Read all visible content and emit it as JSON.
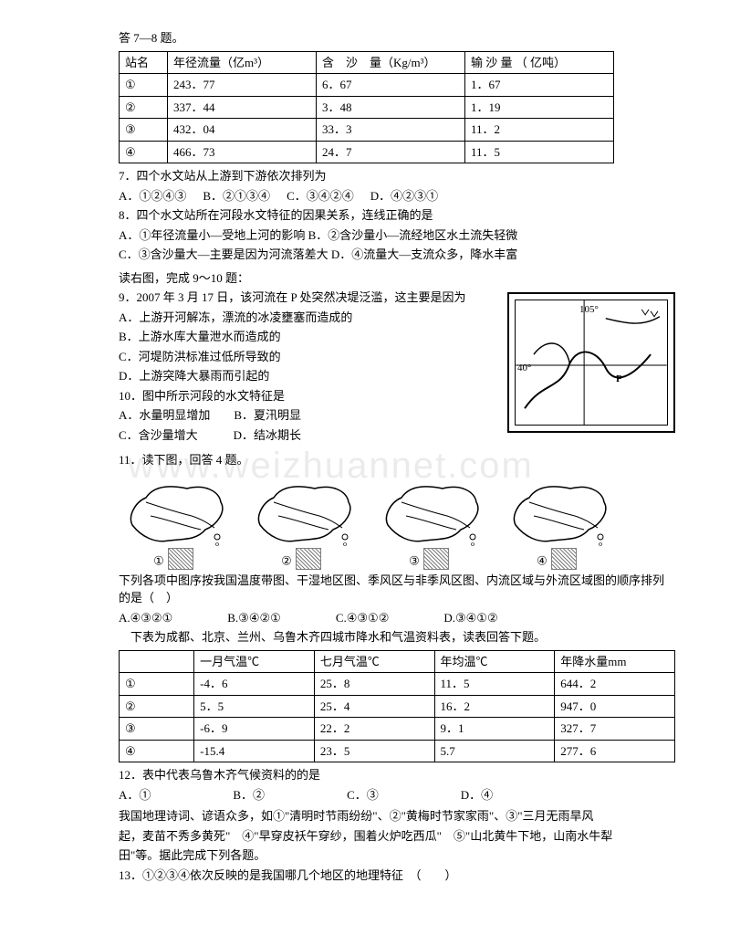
{
  "intro78": "答 7—8 题。",
  "table1": {
    "headers": [
      "站名",
      "年径流量（亿m³）",
      "含　沙　量（Kg/m³）",
      "输 沙 量 （ 亿吨）"
    ],
    "rows": [
      [
        "①",
        "243．77",
        "6．67",
        "1．67"
      ],
      [
        "②",
        "337．44",
        "3．48",
        "1．19"
      ],
      [
        "③",
        "432．04",
        "33．3",
        "11．2"
      ],
      [
        "④",
        "466．73",
        "24．7",
        "11．5"
      ]
    ],
    "col_widths": [
      "40px",
      "150px",
      "150px",
      "150px"
    ]
  },
  "q7": "7．四个水文站从上游到下游依次排列为",
  "q7opts": [
    "A．①②④③",
    "B．②①③④",
    "C．③④②④",
    "D．④②③①"
  ],
  "q8": "8．四个水文站所在河段水文特征的因果关系，连线正确的是",
  "q8a": "A．①年径流量小—受地上河的影响 B．②含沙量小—流经地区水土流失轻微",
  "q8b": "C．③含沙量大—主要是因为河流落差大 D．④流量大—支流众多，降水丰富",
  "intro910": "读右图，完成 9～10 题：",
  "q9": "9．2007 年 3 月 17 日，该河流在 P 处突然决堤泛滥，这主要是因为",
  "q9a": "A．上游开河解冻，漂流的冰凌壅塞而造成的",
  "q9b": "B．上游水库大量泄水而造成的",
  "q9c": "C．河堤防洪标准过低所导致的",
  "q9d": "D．上游突降大暴雨而引起的",
  "q10": "10．图中所示河段的水文特征是",
  "q10a": "A．水量明显增加　　B．夏汛明显",
  "q10b": "C．含沙量增大　　　D．结冰期长",
  "map": {
    "lon": "105°",
    "lat": "40°",
    "p": "P"
  },
  "q11intro": "11．读下图，回答 4 题。",
  "china_nums": [
    "①",
    "②",
    "③",
    "④"
  ],
  "q11text": "下列各项中图序按我国温度带图、干湿地区图、季风区与非季风区图、内流区域与外流区域图的顺序排列的是（　）",
  "q11opts": [
    "A.④③②①",
    "B.③④②①",
    "C.④③①②",
    "D.③④①②"
  ],
  "q12intro": "　下表为成都、北京、兰州、乌鲁木齐四城市降水和气温资料表，读表回答下题。",
  "table2": {
    "headers": [
      "",
      "一月气温℃",
      "七月气温℃",
      "年均温℃",
      "年降水量mm"
    ],
    "rows": [
      [
        "①",
        "-4．6",
        "25．8",
        "11．5",
        "644．2"
      ],
      [
        "②",
        "5．5",
        "25．4",
        "16．2",
        "947．0"
      ],
      [
        "③",
        "-6．9",
        "22．2",
        "9．1",
        "327．7"
      ],
      [
        "④",
        "-15.4",
        "23．5",
        "5.7",
        "277．6"
      ]
    ],
    "col_widths": [
      "70px",
      "120px",
      "120px",
      "120px",
      "120px"
    ]
  },
  "q12": "12．表中代表乌鲁木齐气候资料的的是",
  "q12opts": [
    "A．①",
    "B．②",
    "C．③",
    "D．④"
  ],
  "poem1": "我国地理诗词、谚语众多，如①\"清明时节雨纷纷\"、②\"黄梅时节家家雨\"、③\"三月无雨旱风",
  "poem2": "起，麦苗不秀多黄死\"　④\"早穿皮袄午穿纱，围着火炉吃西瓜\"　⑤\"山北黄牛下地，山南水牛犁",
  "poem3": "田\"等。据此完成下列各题。",
  "q13": "13．①②③④依次反映的是我国哪几个地区的地理特征　（　　）",
  "watermark": "www.weizhuannet.com"
}
